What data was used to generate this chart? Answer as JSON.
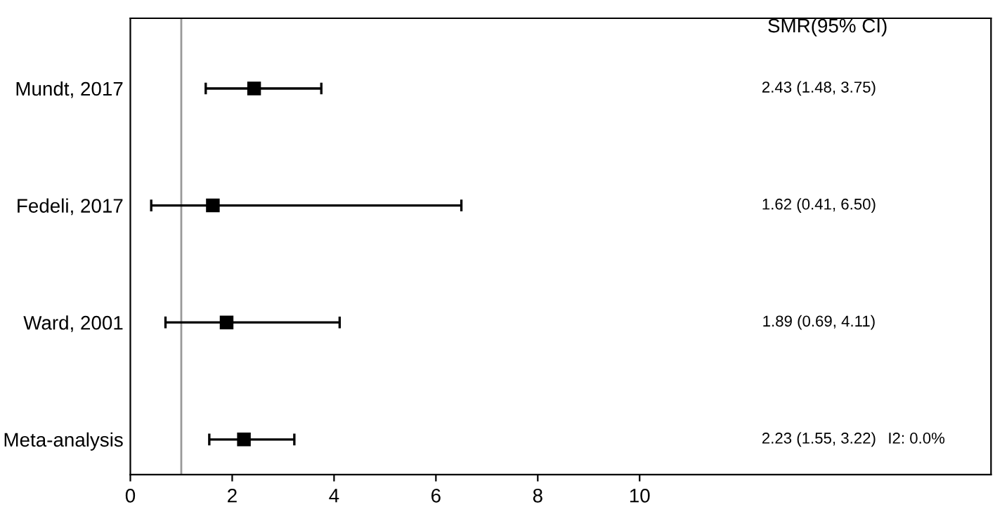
{
  "chart_data": {
    "type": "scatter",
    "orientation": "horizontal",
    "categories": [
      "Mundt, 2017",
      "Fedeli, 2017",
      "Ward, 2001",
      "Meta-analysis"
    ],
    "values": [
      2.43,
      1.62,
      1.89,
      2.23
    ],
    "errors": [
      [
        1.48,
        3.75
      ],
      [
        0.41,
        6.5
      ],
      [
        0.69,
        4.11
      ],
      [
        1.55,
        3.22
      ]
    ],
    "color": "#000000",
    "marker": "square",
    "xlim": [
      0,
      16.9
    ],
    "xticks": [
      0,
      2,
      4,
      6,
      8,
      10
    ],
    "ref_lines": [
      {
        "axis": "x",
        "value": 1,
        "color": "#999999"
      }
    ],
    "annotations": [
      "SMR(95% CI)",
      "2.43 (1.48, 3.75)",
      "1.62 (0.41, 6.50)",
      "1.89 (0.69, 4.11)",
      "2.23 (1.55, 3.22)",
      "I2: 0.0%"
    ],
    "grid": false
  }
}
